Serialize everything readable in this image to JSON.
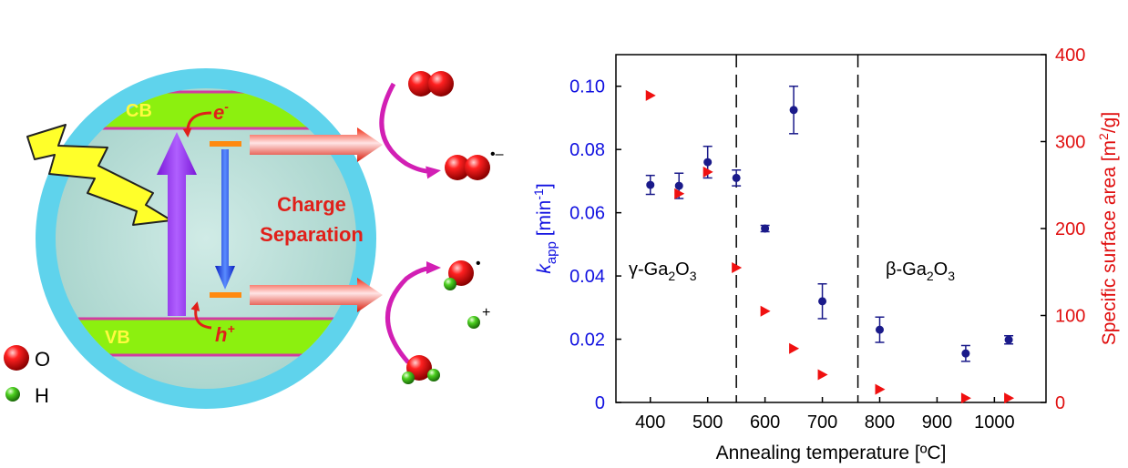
{
  "scheme": {
    "cb_label": "CB",
    "vb_label": "VB",
    "electron_label": "e",
    "electron_sup": "-",
    "hole_label": "h",
    "hole_sup": "+",
    "charge_line1": "Charge",
    "charge_line2": "Separation",
    "superoxide_sup": "•–",
    "hydroxyl_sup": "•",
    "proton_sup": "+",
    "legend": [
      {
        "label": "O",
        "color": "#e01010"
      },
      {
        "label": "H",
        "color": "#3fbf1f"
      }
    ],
    "colors": {
      "shell": "#5fd3ec",
      "core": "#b9dcd6",
      "band": "#8cf00f",
      "band_edge": "#d23ca0",
      "excitation": "#9a2cf5",
      "recombination": "#1030e0",
      "arrow": "#e0301a",
      "curl": "#d21fb4",
      "light": "#ffff2a"
    }
  },
  "chart_data": {
    "type": "scatter",
    "xlabel": "Annealing temperature [ºC]",
    "ylabel_left_main": "k",
    "ylabel_left_sub": "app",
    "ylabel_left_unit": " [min",
    "ylabel_left_sup": "-1",
    "ylabel_left_end": "]",
    "ylabel_right": "Specific surface area [m",
    "ylabel_right_sup": "2",
    "ylabel_right_end": "/g]",
    "xlim": [
      340,
      1090
    ],
    "ylim_left": [
      0,
      0.11
    ],
    "ylim_right": [
      0,
      400
    ],
    "xticks": [
      400,
      500,
      600,
      700,
      800,
      900,
      1000
    ],
    "yticks_left": [
      "0",
      "0.02",
      "0.04",
      "0.06",
      "0.08",
      "0.10"
    ],
    "yticks_left_values": [
      0,
      0.02,
      0.04,
      0.06,
      0.08,
      0.1
    ],
    "yticks_right": [
      0,
      100,
      200,
      300,
      400
    ],
    "phase_lines": [
      550,
      762
    ],
    "phase_gamma": "γ-Ga",
    "phase_beta": "β-Ga",
    "phase_sub2": "2",
    "phase_O": "O",
    "phase_sub3": "3",
    "left_color": "#1010e0",
    "right_color": "#e01010",
    "series": [
      {
        "axis": "left",
        "x": [
          400,
          450,
          500,
          550,
          600,
          650,
          700,
          800,
          950,
          1025
        ],
        "y": [
          0.0688,
          0.0685,
          0.076,
          0.071,
          0.055,
          0.0925,
          0.032,
          0.023,
          0.0155,
          0.0198
        ],
        "err": [
          0.003,
          0.004,
          0.005,
          0.0025,
          0.001,
          0.0075,
          0.0055,
          0.004,
          0.0025,
          0.0013
        ]
      },
      {
        "axis": "right",
        "x": [
          400,
          450,
          500,
          550,
          600,
          650,
          700,
          800,
          950,
          1025
        ],
        "y": [
          353,
          240,
          265,
          155,
          105,
          62,
          32,
          15,
          5,
          5
        ]
      }
    ]
  }
}
